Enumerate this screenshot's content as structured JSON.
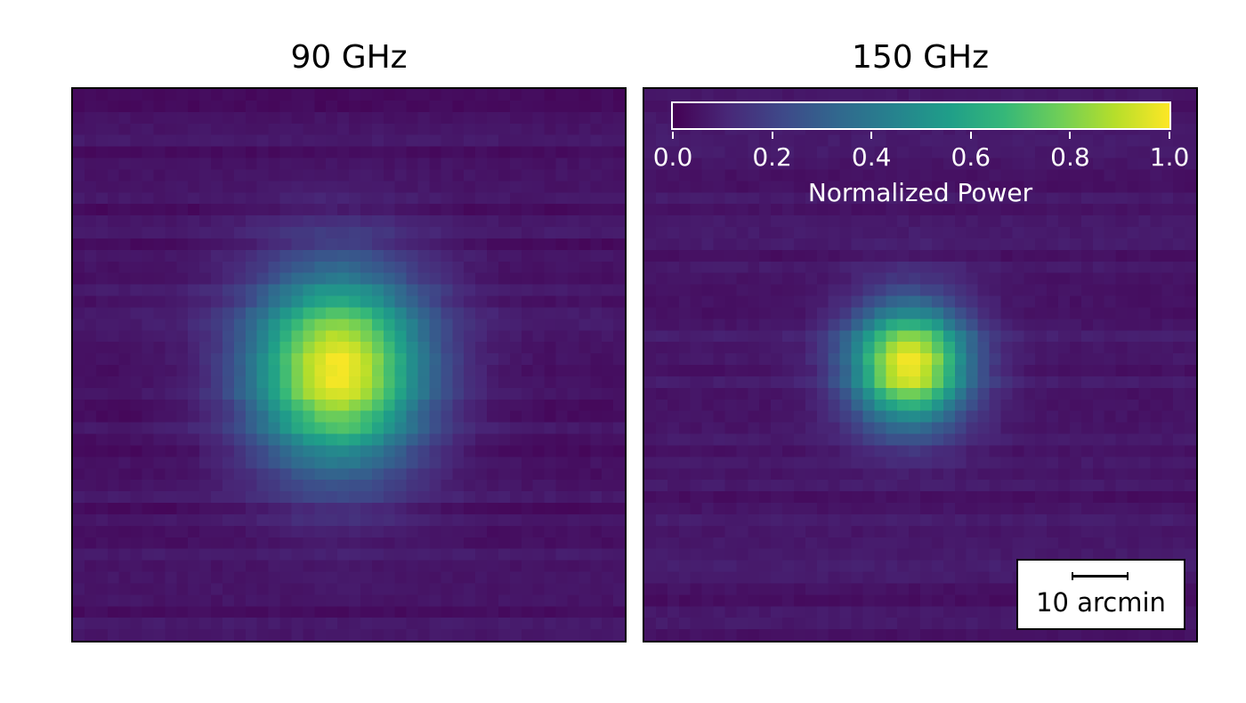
{
  "chart_data": [
    {
      "type": "heatmap",
      "title": "90 GHz",
      "xlabel": "",
      "ylabel": "",
      "grid": false,
      "colormap": "viridis",
      "value_range": [
        0,
        1
      ],
      "grid_size": 48,
      "peak_value": 1.0,
      "peak_location": [
        0.48,
        0.51
      ],
      "sigma": [
        0.11,
        0.12
      ],
      "background_level": 0.05
    },
    {
      "type": "heatmap",
      "title": "150 GHz",
      "xlabel": "",
      "ylabel": "",
      "grid": false,
      "colormap": "viridis",
      "value_range": [
        0,
        1
      ],
      "grid_size": 48,
      "peak_value": 1.0,
      "peak_location": [
        0.48,
        0.5
      ],
      "sigma": [
        0.075,
        0.075
      ],
      "background_level": 0.06
    }
  ],
  "colorbar": {
    "label": "Normalized Power",
    "ticks": [
      "0.0",
      "0.2",
      "0.4",
      "0.6",
      "0.8",
      "1.0"
    ],
    "tick_values": [
      0.0,
      0.2,
      0.4,
      0.6,
      0.8,
      1.0
    ],
    "placement": "top"
  },
  "scalebar": {
    "label": "10 arcmin",
    "placement": "bottom-right"
  },
  "colors": {
    "viridis_stops": [
      "#440154",
      "#482878",
      "#3e4989",
      "#31688e",
      "#26828e",
      "#1f9e89",
      "#35b779",
      "#6ece58",
      "#b5de2b",
      "#fde725"
    ],
    "frame": "#000000",
    "colorbar_text": "#ffffff"
  }
}
